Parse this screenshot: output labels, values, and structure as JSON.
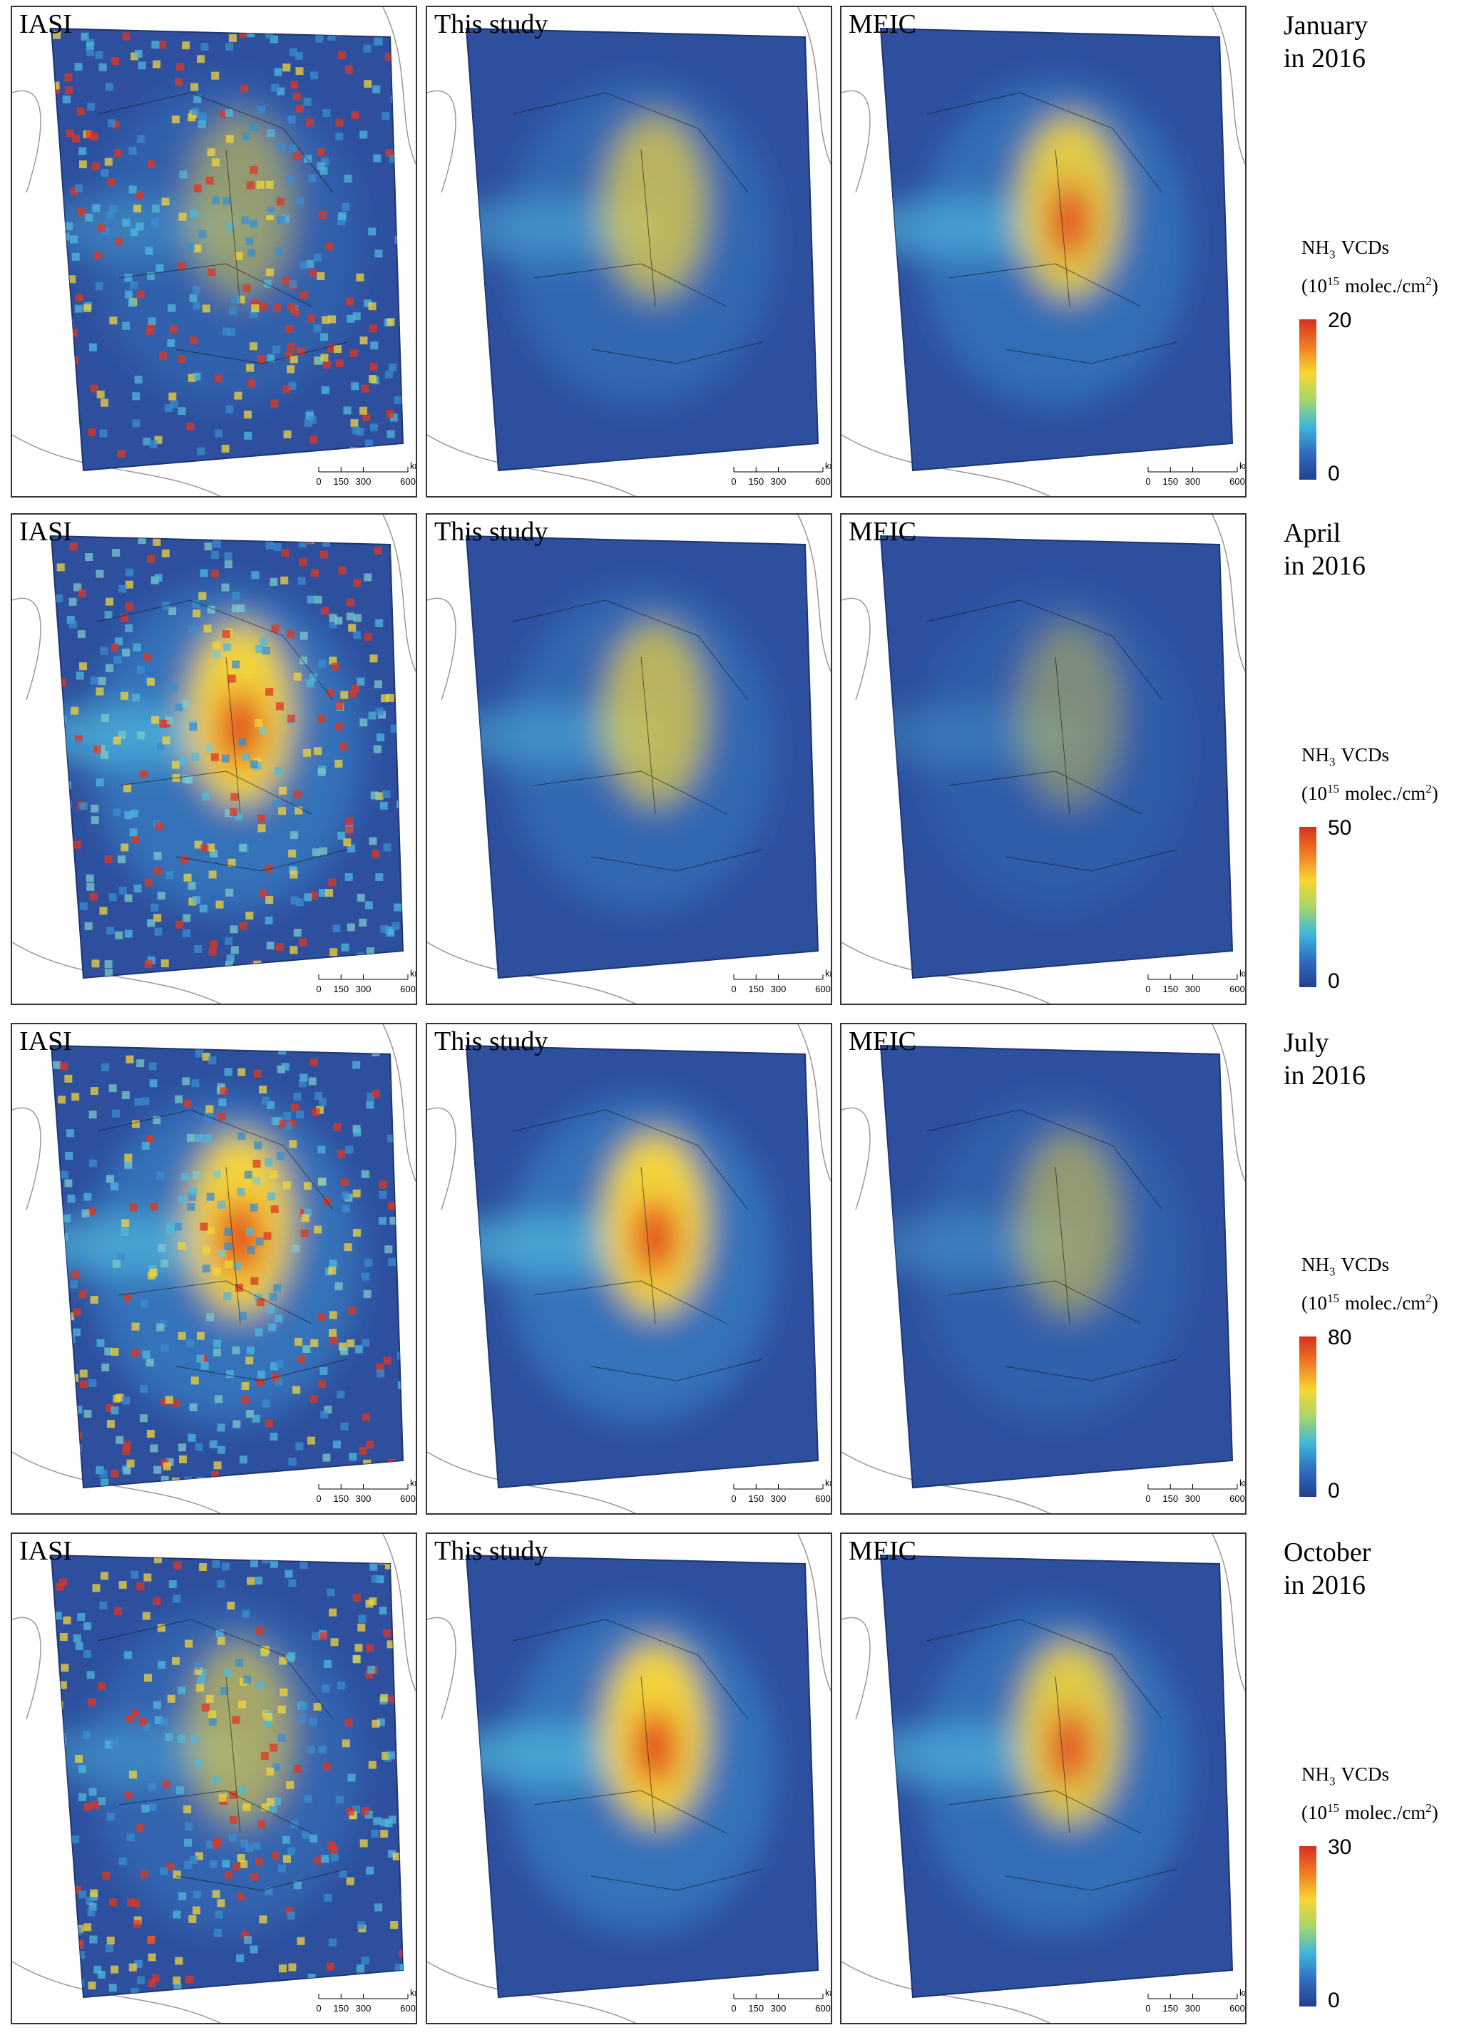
{
  "rows": [
    {
      "month": "January",
      "year": "in 2016",
      "panels": [
        "IASI",
        "This study",
        "MEIC"
      ],
      "colorbar": {
        "max": 20,
        "min": 0
      }
    },
    {
      "month": "April",
      "year": "in 2016",
      "panels": [
        "IASI",
        "This study",
        "MEIC"
      ],
      "colorbar": {
        "max": 50,
        "min": 0
      }
    },
    {
      "month": "July",
      "year": "in 2016",
      "panels": [
        "IASI",
        "This study",
        "MEIC"
      ],
      "colorbar": {
        "max": 80,
        "min": 0
      }
    },
    {
      "month": "October",
      "year": "in 2016",
      "panels": [
        "IASI",
        "This study",
        "MEIC"
      ],
      "colorbar": {
        "max": 30,
        "min": 0
      }
    }
  ],
  "legend": {
    "nh": "NH",
    "sub": "3",
    "vcds": "VCDs",
    "open": "(10",
    "exp": "15",
    "unit": "molec./cm",
    "exp2": "2",
    "close": ")"
  },
  "scale_bar": {
    "ticks": [
      0,
      150,
      300,
      600
    ],
    "unit": "km"
  }
}
